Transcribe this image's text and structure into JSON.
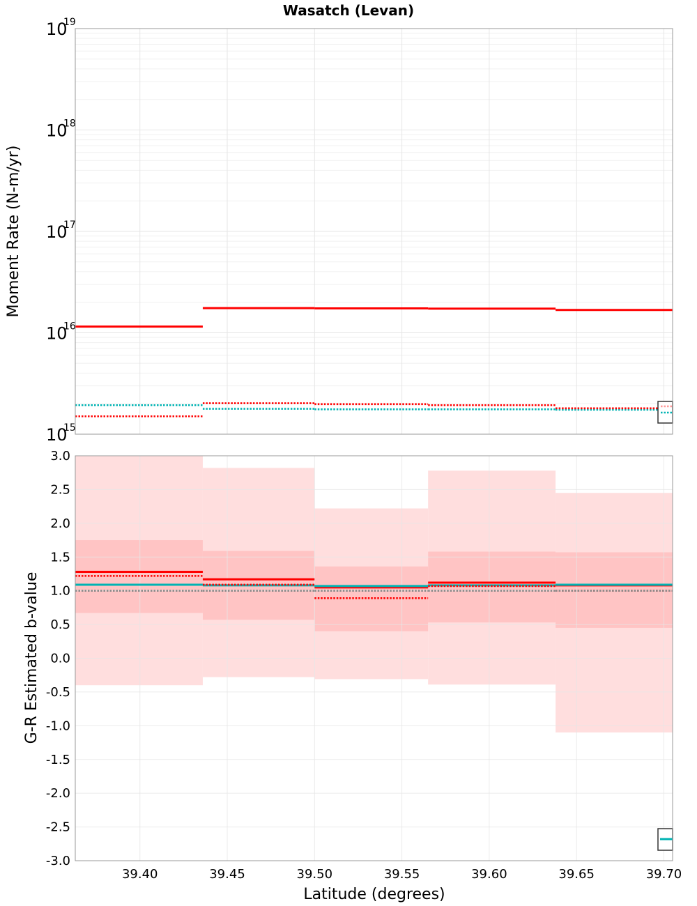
{
  "title": "Wasatch (Levan)",
  "colors": {
    "red": "#ff0000",
    "cyan": "#00b3b3",
    "gray": "#888888",
    "band_outer": "#ffdede",
    "band_inner": "#ffc4c4",
    "grid": "#e6e6e6",
    "frame": "#999999"
  },
  "chart_data": [
    {
      "type": "line",
      "name": "moment-rate",
      "step": true,
      "yscale": "log",
      "ylabel": "Moment Rate (N-m/yr)",
      "xlabel": "",
      "xlim": [
        39.363,
        39.705
      ],
      "ylim": [
        1000000000000000.0,
        1e+19
      ],
      "y_ticks": [
        {
          "base": "10",
          "exp": "15",
          "value": 1000000000000000.0
        },
        {
          "base": "10",
          "exp": "16",
          "value": 1e+16
        },
        {
          "base": "10",
          "exp": "17",
          "value": 1e+17
        },
        {
          "base": "10",
          "exp": "18",
          "value": 1e+18
        },
        {
          "base": "10",
          "exp": "19",
          "value": 1e+19
        }
      ],
      "bin_edges": [
        39.363,
        39.436,
        39.5,
        39.565,
        39.638,
        39.705
      ],
      "series": [
        {
          "name": "solid red",
          "color": "#ff0000",
          "style": "solid",
          "values": [
            1.15e+16,
            1.75e+16,
            1.74e+16,
            1.73e+16,
            1.68e+16
          ]
        },
        {
          "name": "dotted cyan",
          "color": "#00b3b3",
          "style": "dotted",
          "values": [
            1930000000000000.0,
            1780000000000000.0,
            1760000000000000.0,
            1760000000000000.0,
            1740000000000000.0
          ]
        },
        {
          "name": "dotted red",
          "color": "#ff0000",
          "style": "dotted",
          "values": [
            1500000000000000.0,
            2020000000000000.0,
            1980000000000000.0,
            1930000000000000.0,
            1800000000000000.0
          ]
        }
      ]
    },
    {
      "type": "line",
      "name": "b-value",
      "step": true,
      "ylabel": "G-R Estimated b-value",
      "xlabel": "Latitude (degrees)",
      "xlim": [
        39.363,
        39.705
      ],
      "ylim": [
        -3.0,
        3.0
      ],
      "x_ticks": [
        "39.40",
        "39.45",
        "39.50",
        "39.55",
        "39.60",
        "39.65",
        "39.70"
      ],
      "y_ticks": [
        "3.0",
        "2.5",
        "2.0",
        "1.5",
        "1.0",
        "0.5",
        "0.0",
        "-0.5",
        "-1.0",
        "-1.5",
        "-2.0",
        "-2.5",
        "-3.0"
      ],
      "bin_edges": [
        39.363,
        39.436,
        39.5,
        39.565,
        39.638,
        39.705
      ],
      "bands": [
        {
          "name": "outer range",
          "color": "#ffdede",
          "lower": [
            -0.4,
            -0.28,
            -0.31,
            -0.39,
            -1.1
          ],
          "upper": [
            3.0,
            2.82,
            2.22,
            2.78,
            2.45
          ]
        },
        {
          "name": "inner range",
          "color": "#ffc4c4",
          "lower": [
            0.67,
            0.57,
            0.4,
            0.53,
            0.45
          ],
          "upper": [
            1.75,
            1.59,
            1.36,
            1.58,
            1.57
          ]
        }
      ],
      "series": [
        {
          "name": "solid red",
          "color": "#ff0000",
          "style": "solid",
          "values": [
            1.28,
            1.17,
            1.05,
            1.12,
            1.08
          ]
        },
        {
          "name": "solid cyan",
          "color": "#00b3b3",
          "style": "solid",
          "values": [
            1.09,
            1.08,
            1.07,
            1.08,
            1.09
          ]
        },
        {
          "name": "dotted red",
          "color": "#ff0000",
          "style": "dotted",
          "values": [
            1.22,
            1.09,
            0.89,
            1.07,
            1.0
          ]
        },
        {
          "name": "dotted gray",
          "color": "#888888",
          "style": "dotted",
          "values": [
            1.0,
            1.0,
            1.0,
            1.0,
            1.0
          ]
        }
      ]
    }
  ]
}
